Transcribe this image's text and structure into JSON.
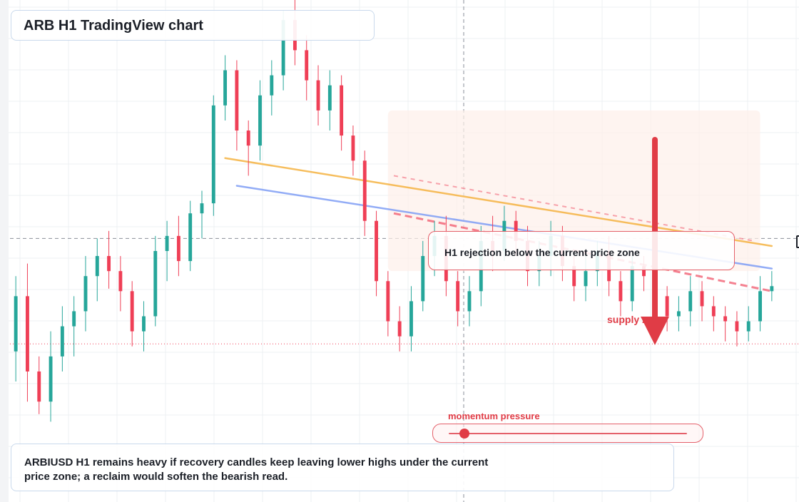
{
  "title": "ARB H1 TradingView chart",
  "annotations": {
    "rejection": "H1 rejection below the current price zone",
    "supply": "supply zone",
    "momentum": "momentum pressure",
    "momentum_level": 0.08,
    "caption": "ARBIUSD H1 remains heavy if recovery candles keep leaving lower highs under the current price zone; a reclaim would soften the bearish read."
  },
  "colors": {
    "up": "#26a69a",
    "down": "#ef3f56",
    "trend_orange": "#f5b342",
    "trend_blue": "#7f9ef5",
    "accent_red": "#e03c46"
  },
  "chart_data": {
    "type": "candlestick",
    "symbol": "ARBIUSD",
    "timeframe": "H1",
    "candles": [
      [
        1,
        80,
        102,
        68,
        110
      ],
      [
        3,
        102,
        72,
        60,
        115
      ],
      [
        5,
        72,
        60,
        55,
        78
      ],
      [
        7,
        60,
        78,
        52,
        88
      ],
      [
        9,
        78,
        90,
        72,
        98
      ],
      [
        11,
        90,
        96,
        78,
        102
      ],
      [
        13,
        96,
        110,
        88,
        118
      ],
      [
        15,
        110,
        118,
        100,
        125
      ],
      [
        17,
        118,
        112,
        105,
        128
      ],
      [
        19,
        112,
        104,
        96,
        118
      ],
      [
        21,
        104,
        88,
        82,
        108
      ],
      [
        23,
        88,
        94,
        80,
        100
      ],
      [
        25,
        94,
        120,
        90,
        126
      ],
      [
        27,
        120,
        126,
        108,
        132
      ],
      [
        29,
        126,
        116,
        110,
        134
      ],
      [
        31,
        116,
        135,
        112,
        140
      ],
      [
        33,
        135,
        139,
        125,
        144
      ],
      [
        35,
        139,
        178,
        134,
        182
      ],
      [
        37,
        178,
        192,
        172,
        198
      ],
      [
        39,
        192,
        168,
        160,
        196
      ],
      [
        41,
        168,
        162,
        150,
        172
      ],
      [
        43,
        162,
        182,
        156,
        188
      ],
      [
        45,
        182,
        190,
        174,
        196
      ],
      [
        47,
        190,
        212,
        184,
        216
      ],
      [
        49,
        212,
        200,
        194,
        220
      ],
      [
        51,
        200,
        188,
        180,
        206
      ],
      [
        53,
        188,
        176,
        170,
        194
      ],
      [
        55,
        176,
        186,
        168,
        192
      ],
      [
        57,
        186,
        166,
        160,
        190
      ],
      [
        59,
        166,
        156,
        150,
        170
      ],
      [
        61,
        156,
        132,
        126,
        160
      ],
      [
        63,
        132,
        108,
        102,
        136
      ],
      [
        65,
        108,
        92,
        86,
        112
      ],
      [
        67,
        92,
        86,
        80,
        98
      ],
      [
        69,
        86,
        100,
        80,
        106
      ],
      [
        71,
        100,
        118,
        96,
        124
      ],
      [
        73,
        118,
        126,
        110,
        132
      ],
      [
        75,
        126,
        108,
        102,
        134
      ],
      [
        77,
        108,
        96,
        90,
        112
      ],
      [
        79,
        96,
        104,
        90,
        110
      ],
      [
        81,
        104,
        124,
        98,
        130
      ],
      [
        83,
        124,
        120,
        112,
        134
      ],
      [
        85,
        120,
        132,
        116,
        138
      ],
      [
        87,
        132,
        124,
        118,
        136
      ],
      [
        89,
        124,
        112,
        106,
        130
      ],
      [
        91,
        112,
        118,
        106,
        124
      ],
      [
        93,
        118,
        126,
        110,
        132
      ],
      [
        95,
        126,
        114,
        108,
        130
      ],
      [
        97,
        114,
        106,
        100,
        118
      ],
      [
        99,
        106,
        112,
        100,
        118
      ],
      [
        101,
        112,
        120,
        106,
        124
      ],
      [
        103,
        120,
        108,
        102,
        126
      ],
      [
        105,
        108,
        100,
        94,
        112
      ],
      [
        107,
        100,
        114,
        96,
        118
      ],
      [
        109,
        114,
        110,
        104,
        118
      ],
      [
        111,
        110,
        102,
        96,
        116
      ],
      [
        113,
        102,
        94,
        88,
        106
      ],
      [
        115,
        94,
        96,
        88,
        102
      ],
      [
        117,
        96,
        104,
        90,
        110
      ],
      [
        119,
        104,
        98,
        92,
        108
      ],
      [
        121,
        98,
        94,
        88,
        102
      ],
      [
        123,
        94,
        92,
        84,
        98
      ],
      [
        125,
        92,
        88,
        82,
        96
      ],
      [
        127,
        88,
        92,
        84,
        98
      ],
      [
        129,
        92,
        104,
        88,
        110
      ],
      [
        131,
        104,
        106,
        100,
        112
      ]
    ],
    "ylim": [
      20,
      220
    ],
    "xlim": [
      0,
      132
    ],
    "current_price": 83,
    "price_line": 125,
    "trendlines": [
      {
        "name": "",
        "color": "orange",
        "from": [
          37,
          157
        ],
        "to": [
          131,
          122
        ]
      },
      {
        "name": "",
        "color": "blue",
        "from": [
          39,
          146
        ],
        "to": [
          131,
          113
        ]
      }
    ],
    "projections": [
      {
        "from": [
          66,
          135
        ],
        "to": [
          131,
          104
        ]
      },
      {
        "from": [
          66,
          150
        ],
        "to": [
          128,
          124
        ]
      }
    ],
    "supply_zone": {
      "x": [
        65,
        129
      ],
      "y": [
        112,
        176
      ]
    },
    "grid": true,
    "legend": "none"
  }
}
